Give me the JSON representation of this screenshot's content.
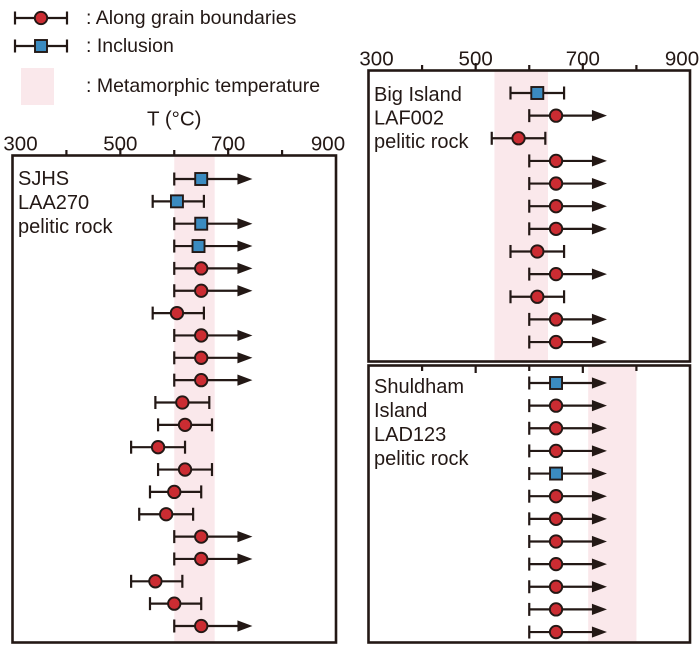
{
  "figure": {
    "legend": {
      "items": [
        {
          "symbol": "red-circle-errorbar",
          "label": ": Along grain boundaries"
        },
        {
          "symbol": "blue-square-errorbar",
          "label": ": Inclusion"
        },
        {
          "symbol": "pink-band",
          "label": ": Metamorphic temperature"
        }
      ]
    },
    "axis": {
      "title": "T (°C)",
      "min": 300,
      "max": 900,
      "tick_labels": [
        "300",
        "500",
        "700",
        "900"
      ],
      "tick_values": [
        300,
        500,
        700,
        900
      ],
      "minor_tick_values": [
        400,
        600,
        800
      ]
    },
    "colors": {
      "ink": "#231815",
      "marker_red": "#cb2c32",
      "marker_blue": "#3b8bc0",
      "band_pink": "#fae8eb"
    }
  },
  "chart_data": [
    {
      "type": "scatter-errorbar",
      "id": "sjhs",
      "label_lines": [
        "SJHS",
        "LAA270",
        "pelitic rock"
      ],
      "xlabel": "T (°C)",
      "xlim": [
        300,
        900
      ],
      "metamorphic_band": [
        600,
        675
      ],
      "points": [
        {
          "sym": "square",
          "t": 650,
          "low": 600,
          "arrow": 745
        },
        {
          "sym": "square",
          "t": 605,
          "low": 560,
          "high": 655
        },
        {
          "sym": "square",
          "t": 650,
          "low": 600,
          "arrow": 745
        },
        {
          "sym": "square",
          "t": 645,
          "low": 600,
          "arrow": 745
        },
        {
          "sym": "circle",
          "t": 650,
          "low": 600,
          "arrow": 745
        },
        {
          "sym": "circle",
          "t": 650,
          "low": 600,
          "arrow": 745
        },
        {
          "sym": "circle",
          "t": 605,
          "low": 560,
          "high": 655
        },
        {
          "sym": "circle",
          "t": 650,
          "low": 600,
          "arrow": 745
        },
        {
          "sym": "circle",
          "t": 650,
          "low": 600,
          "arrow": 745
        },
        {
          "sym": "circle",
          "t": 650,
          "low": 600,
          "arrow": 745
        },
        {
          "sym": "circle",
          "t": 615,
          "low": 565,
          "high": 665
        },
        {
          "sym": "circle",
          "t": 620,
          "low": 570,
          "high": 670
        },
        {
          "sym": "circle",
          "t": 570,
          "low": 520,
          "high": 620
        },
        {
          "sym": "circle",
          "t": 620,
          "low": 570,
          "high": 670
        },
        {
          "sym": "circle",
          "t": 600,
          "low": 555,
          "high": 650
        },
        {
          "sym": "circle",
          "t": 585,
          "low": 535,
          "high": 635
        },
        {
          "sym": "circle",
          "t": 650,
          "low": 600,
          "arrow": 745
        },
        {
          "sym": "circle",
          "t": 650,
          "low": 600,
          "arrow": 745
        },
        {
          "sym": "circle",
          "t": 565,
          "low": 520,
          "high": 615
        },
        {
          "sym": "circle",
          "t": 600,
          "low": 555,
          "high": 650
        },
        {
          "sym": "circle",
          "t": 650,
          "low": 600,
          "arrow": 745
        }
      ]
    },
    {
      "type": "scatter-errorbar",
      "id": "big-island",
      "label_lines": [
        "Big Island",
        "LAF002",
        "pelitic rock"
      ],
      "xlim": [
        300,
        900
      ],
      "metamorphic_band": [
        535,
        635
      ],
      "points": [
        {
          "sym": "square",
          "t": 615,
          "low": 565,
          "high": 665
        },
        {
          "sym": "circle",
          "t": 650,
          "low": 600,
          "arrow": 745
        },
        {
          "sym": "circle",
          "t": 580,
          "low": 530,
          "high": 630
        },
        {
          "sym": "circle",
          "t": 650,
          "low": 600,
          "arrow": 745
        },
        {
          "sym": "circle",
          "t": 650,
          "low": 600,
          "arrow": 745
        },
        {
          "sym": "circle",
          "t": 650,
          "low": 600,
          "arrow": 745
        },
        {
          "sym": "circle",
          "t": 650,
          "low": 600,
          "arrow": 745
        },
        {
          "sym": "circle",
          "t": 615,
          "low": 565,
          "high": 665
        },
        {
          "sym": "circle",
          "t": 650,
          "low": 600,
          "arrow": 745
        },
        {
          "sym": "circle",
          "t": 615,
          "low": 565,
          "high": 665
        },
        {
          "sym": "circle",
          "t": 650,
          "low": 600,
          "arrow": 745
        },
        {
          "sym": "circle",
          "t": 650,
          "low": 600,
          "arrow": 745
        }
      ]
    },
    {
      "type": "scatter-errorbar",
      "id": "shuldham-island",
      "label_lines": [
        "Shuldham",
        "Island",
        "LAD123",
        "pelitic rock"
      ],
      "xlim": [
        300,
        900
      ],
      "metamorphic_band": [
        710,
        800
      ],
      "points": [
        {
          "sym": "square",
          "t": 650,
          "low": 600,
          "arrow": 745
        },
        {
          "sym": "circle",
          "t": 650,
          "low": 600,
          "arrow": 745
        },
        {
          "sym": "circle",
          "t": 650,
          "low": 600,
          "arrow": 745
        },
        {
          "sym": "circle",
          "t": 650,
          "low": 600,
          "arrow": 745
        },
        {
          "sym": "square",
          "t": 650,
          "low": 600,
          "arrow": 745
        },
        {
          "sym": "circle",
          "t": 650,
          "low": 600,
          "arrow": 745
        },
        {
          "sym": "circle",
          "t": 650,
          "low": 600,
          "arrow": 745
        },
        {
          "sym": "circle",
          "t": 650,
          "low": 600,
          "arrow": 745
        },
        {
          "sym": "circle",
          "t": 650,
          "low": 600,
          "arrow": 745
        },
        {
          "sym": "circle",
          "t": 650,
          "low": 600,
          "arrow": 745
        },
        {
          "sym": "circle",
          "t": 650,
          "low": 600,
          "arrow": 745
        },
        {
          "sym": "circle",
          "t": 650,
          "low": 600,
          "arrow": 745
        }
      ]
    }
  ]
}
